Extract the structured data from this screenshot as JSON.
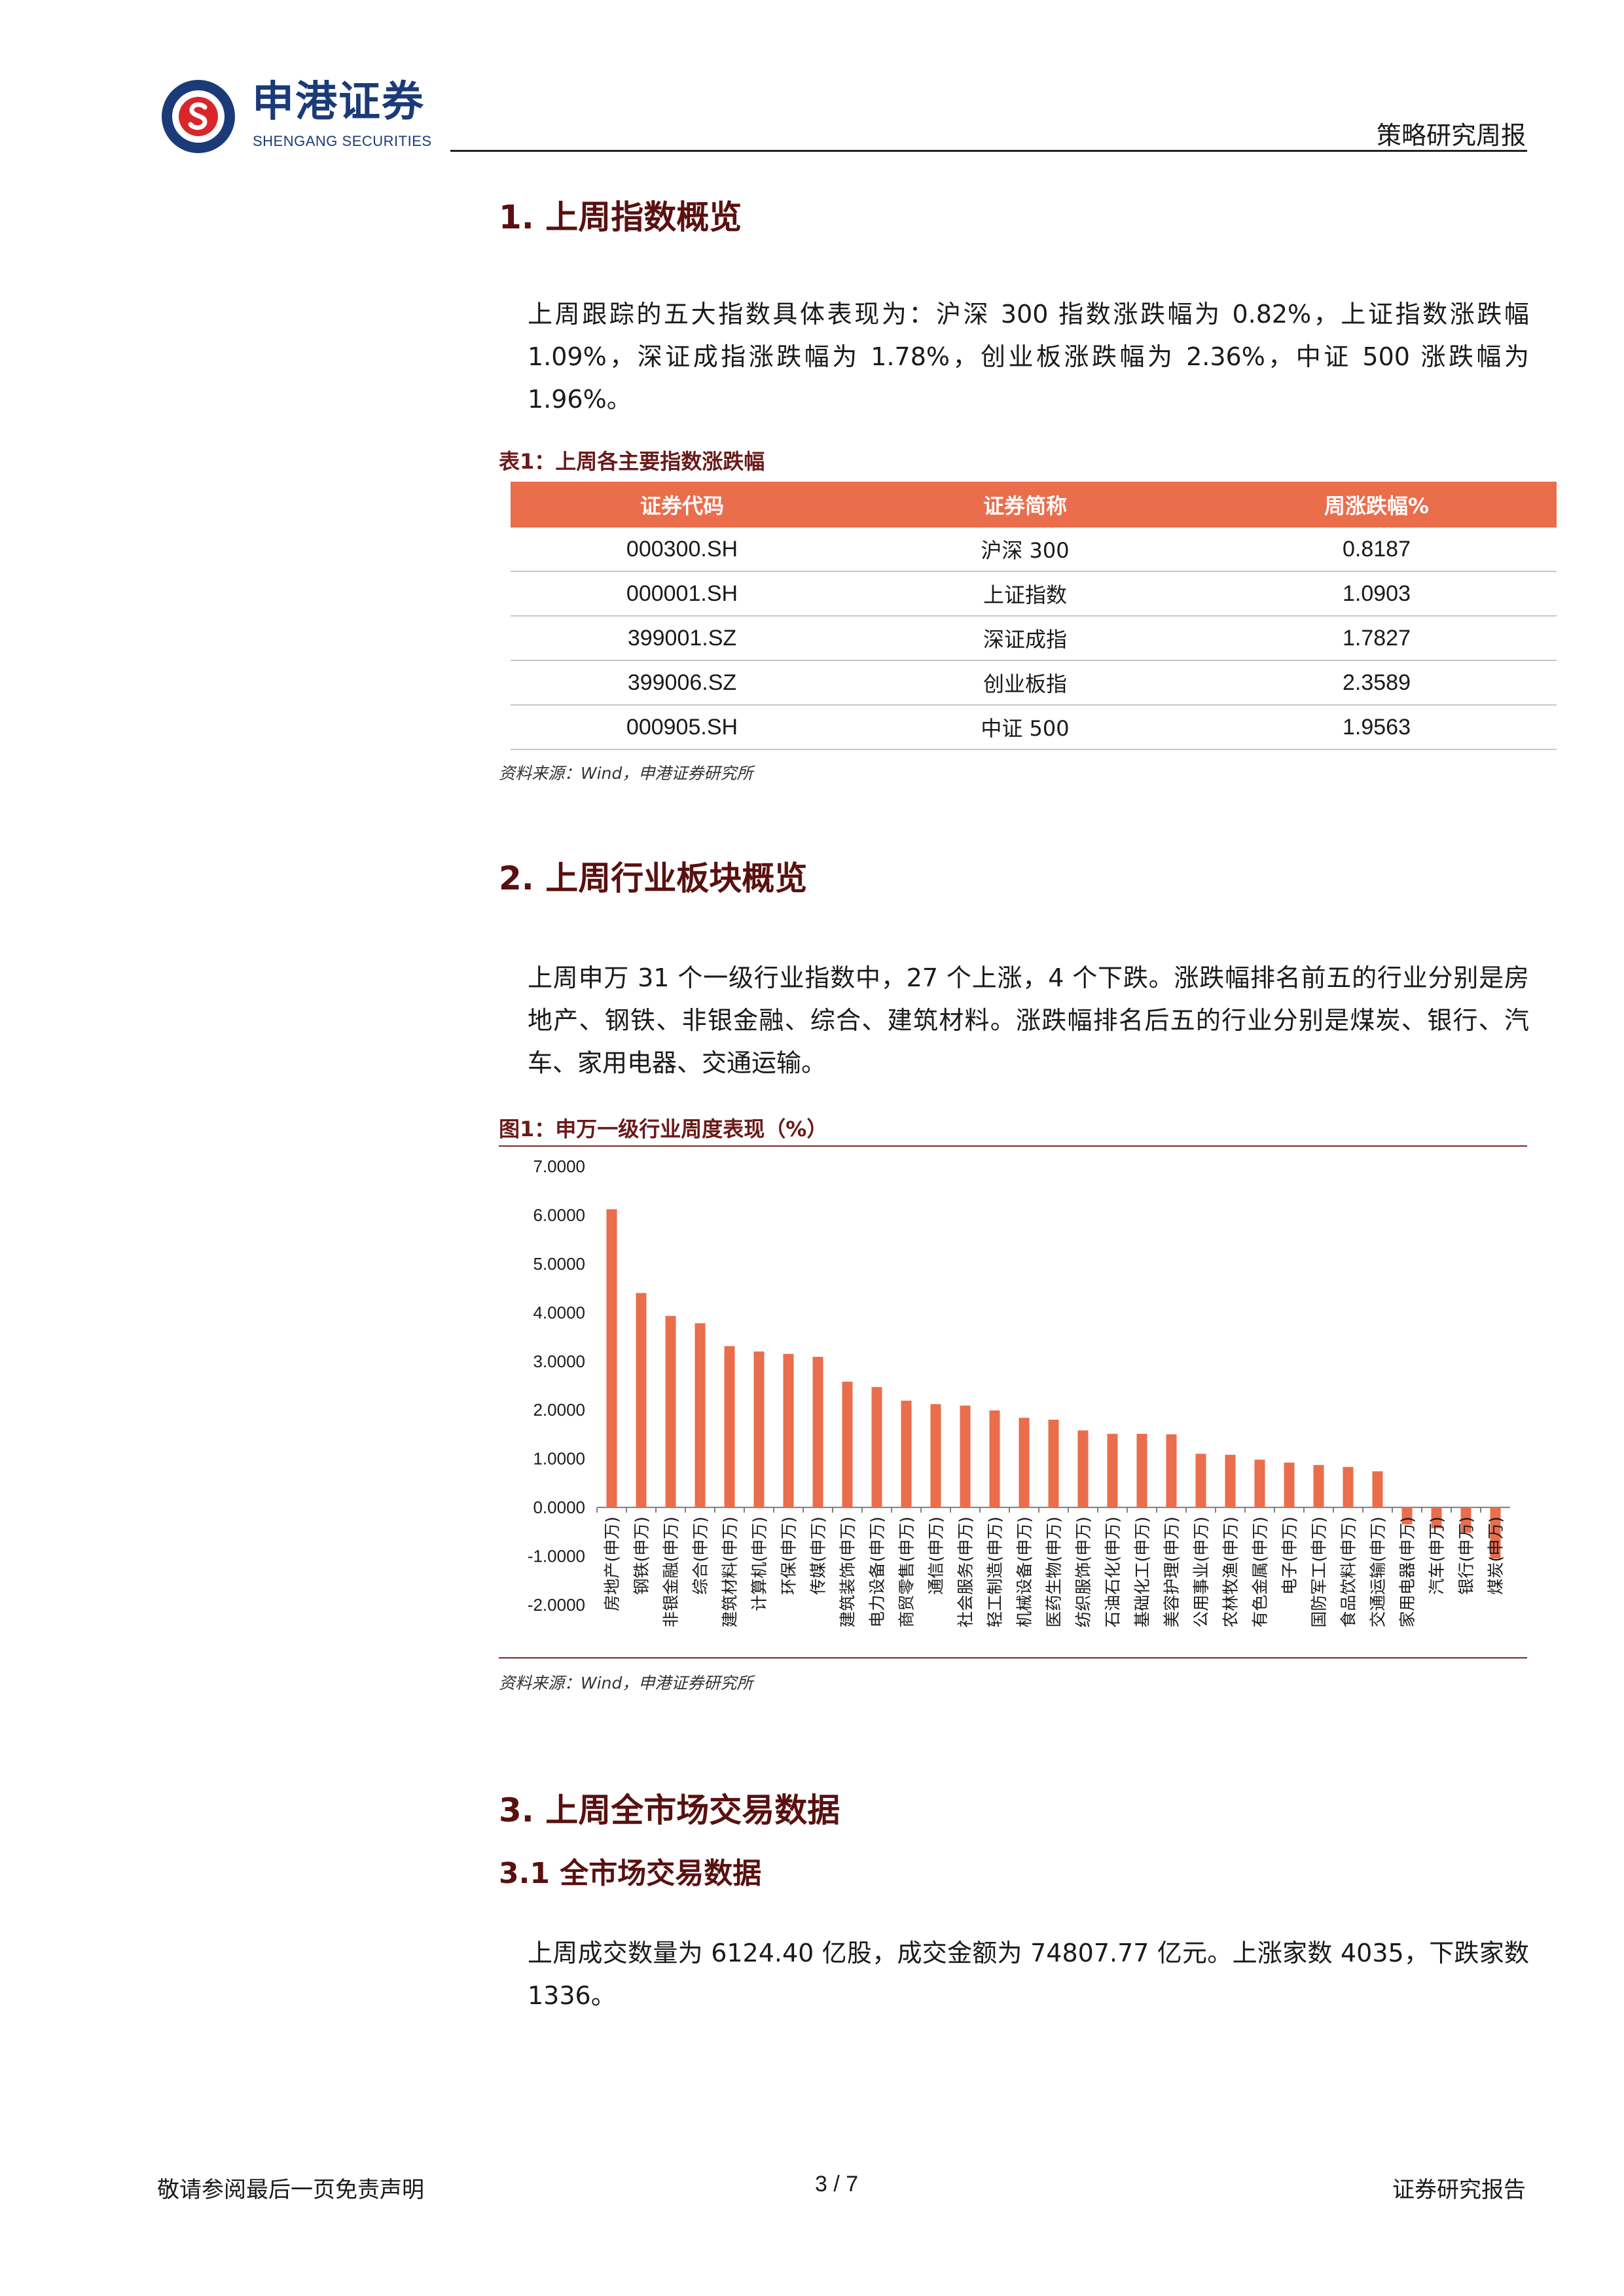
{
  "header": {
    "brand_cn": "申港证券",
    "brand_en": "SHENGANG SECURITIES",
    "report_type": "策略研究周报"
  },
  "section1": {
    "title": "1. 上周指数概览",
    "text": "上周跟踪的五大指数具体表现为：沪深 300 指数涨跌幅为 0.82%，上证指数涨跌幅 1.09%，深证成指涨跌幅为 1.78%，创业板涨跌幅为 2.36%，中证 500 涨跌幅为 1.96%。",
    "table_caption": "表1：上周各主要指数涨跌幅",
    "table_headers": [
      "证券代码",
      "证券简称",
      "周涨跌幅%"
    ],
    "table_rows": [
      [
        "000300.SH",
        "沪深 300",
        "0.8187"
      ],
      [
        "000001.SH",
        "上证指数",
        "1.0903"
      ],
      [
        "399001.SZ",
        "深证成指",
        "1.7827"
      ],
      [
        "399006.SZ",
        "创业板指",
        "2.3589"
      ],
      [
        "000905.SH",
        "中证 500",
        "1.9563"
      ]
    ],
    "source": "资料来源：Wind，申港证券研究所"
  },
  "section2": {
    "title": "2. 上周行业板块概览",
    "text": "上周申万 31 个一级行业指数中，27 个上涨，4 个下跌。涨跌幅排名前五的行业分别是房地产、钢铁、非银金融、综合、建筑材料。涨跌幅排名后五的行业分别是煤炭、银行、汽车、家用电器、交通运输。",
    "figure_caption": "图1：申万一级行业周度表现（%）",
    "source": "资料来源：Wind，申港证券研究所"
  },
  "section3": {
    "title": "3. 上周全市场交易数据",
    "subtitle": "3.1 全市场交易数据",
    "text": "上周成交数量为 6124.40 亿股，成交金额为 74807.77 亿元。上涨家数 4035，下跌家数 1336。"
  },
  "footer": {
    "left": "敬请参阅最后一页免责声明",
    "center": "3 / 7",
    "right": "证券研究报告"
  },
  "colors": {
    "accent": "#ea6d4c",
    "heading": "#5a1010",
    "brand": "#1b3a78"
  },
  "chart_data": {
    "type": "bar",
    "title": "",
    "xlabel": "",
    "ylabel": "",
    "ylim": [
      -2,
      7
    ],
    "yticks": [
      "7.0000",
      "6.0000",
      "5.0000",
      "4.0000",
      "3.0000",
      "2.0000",
      "1.0000",
      "0.0000",
      "-1.0000",
      "-2.0000"
    ],
    "categories": [
      "房地产(申万)",
      "钢铁(申万)",
      "非银金融(申万)",
      "综合(申万)",
      "建筑材料(申万)",
      "计算机(申万)",
      "环保(申万)",
      "传媒(申万)",
      "建筑装饰(申万)",
      "电力设备(申万)",
      "商贸零售(申万)",
      "通信(申万)",
      "社会服务(申万)",
      "轻工制造(申万)",
      "机械设备(申万)",
      "医药生物(申万)",
      "纺织服饰(申万)",
      "石油石化(申万)",
      "基础化工(申万)",
      "美容护理(申万)",
      "公用事业(申万)",
      "农林牧渔(申万)",
      "有色金属(申万)",
      "电子(申万)",
      "国防军工(申万)",
      "食品饮料(申万)",
      "交通运输(申万)",
      "家用电器(申万)",
      "汽车(申万)",
      "银行(申万)",
      "煤炭(申万)"
    ],
    "values": [
      6.12,
      4.4,
      3.93,
      3.78,
      3.31,
      3.2,
      3.15,
      3.09,
      2.58,
      2.47,
      2.19,
      2.12,
      2.09,
      1.99,
      1.84,
      1.8,
      1.58,
      1.51,
      1.51,
      1.5,
      1.1,
      1.08,
      0.98,
      0.92,
      0.87,
      0.83,
      0.74,
      -0.35,
      -0.43,
      -0.52,
      -1.05
    ],
    "color": "#ea6d4c",
    "grid": false,
    "legend": "none"
  }
}
